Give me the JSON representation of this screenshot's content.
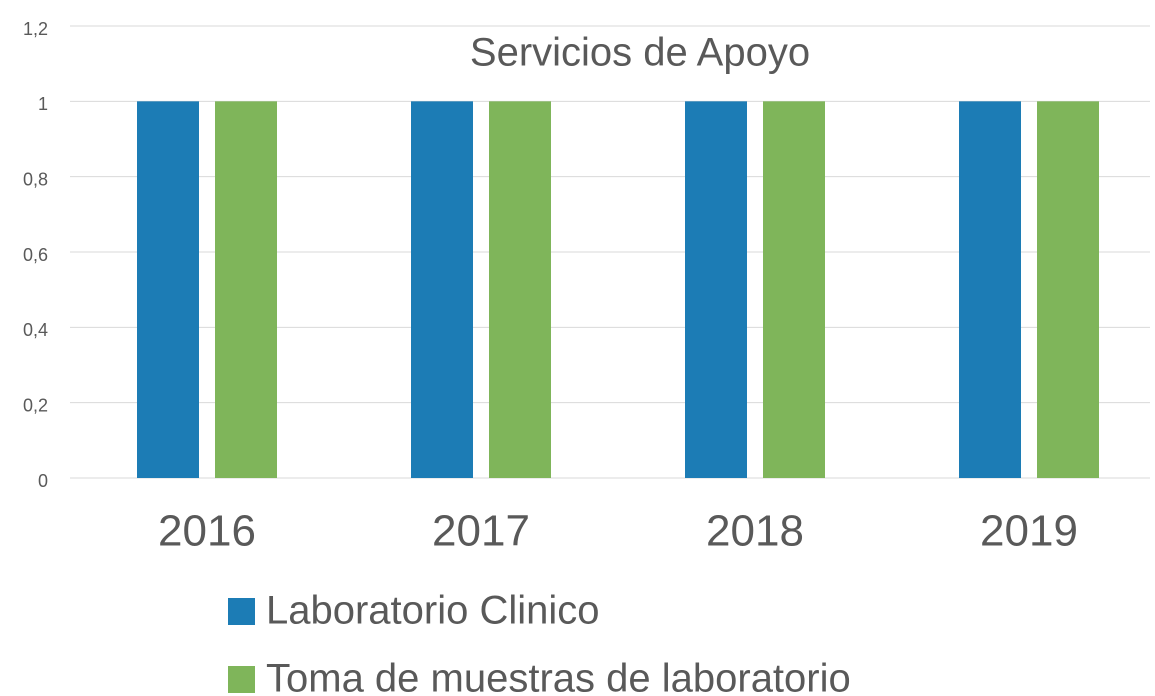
{
  "chart_data": {
    "type": "bar",
    "title": "Servicios de Apoyo",
    "categories": [
      "2016",
      "2017",
      "2018",
      "2019"
    ],
    "series": [
      {
        "name": "Laboratorio Clinico",
        "color": "#1c7cb5",
        "values": [
          1,
          1,
          1,
          1
        ]
      },
      {
        "name": "Toma de muestras de laboratorio",
        "color": "#7fb55a",
        "values": [
          1,
          1,
          1,
          1
        ]
      }
    ],
    "ylim": [
      0,
      1.2
    ],
    "yticks": [
      0,
      {
        "value": 0.2,
        "label": "0,2"
      },
      {
        "value": 0.4,
        "label": "0,4"
      },
      {
        "value": 0.6,
        "label": "0,6"
      },
      {
        "value": 0.8,
        "label": "0,8"
      },
      1,
      {
        "value": 1.2,
        "label": "1,2"
      }
    ],
    "grid": true,
    "legend": "bottom"
  }
}
